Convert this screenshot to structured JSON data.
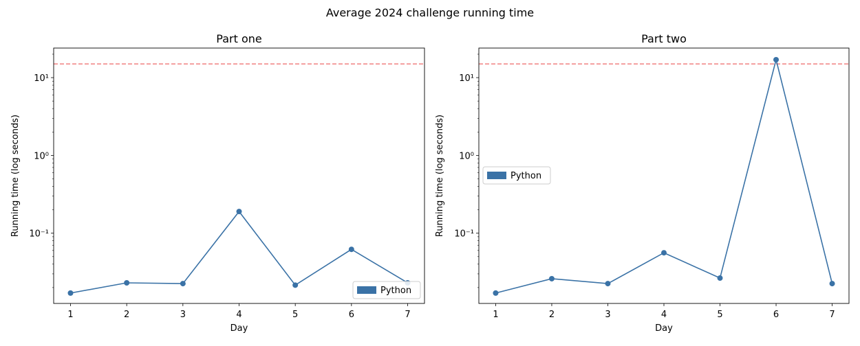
{
  "figure": {
    "suptitle": "Average 2024 challenge running time"
  },
  "chart_data": [
    {
      "type": "line",
      "title": "Part one",
      "xlabel": "Day",
      "ylabel": "Running time (log seconds)",
      "x": [
        1,
        2,
        3,
        4,
        5,
        6,
        7
      ],
      "series": [
        {
          "name": "Python",
          "values": [
            0.017,
            0.023,
            0.0225,
            0.19,
            0.0215,
            0.062,
            0.023
          ]
        }
      ],
      "threshold": 15,
      "yscale": "log",
      "ylim": [
        0.0125,
        24
      ],
      "xlim": [
        0.7,
        7.3
      ],
      "yticks": [
        0.1,
        1,
        10
      ],
      "ytick_labels": [
        "10⁻¹",
        "10⁰",
        "10¹"
      ],
      "legend": {
        "label": "Python",
        "placement": "lower-right"
      },
      "colors": {
        "series": "#3a72a6",
        "threshold": "#f08080"
      }
    },
    {
      "type": "line",
      "title": "Part two",
      "xlabel": "Day",
      "ylabel": "Running time (log seconds)",
      "x": [
        1,
        2,
        3,
        4,
        5,
        6,
        7
      ],
      "series": [
        {
          "name": "Python",
          "values": [
            0.017,
            0.026,
            0.0225,
            0.056,
            0.0265,
            17,
            0.0225
          ]
        }
      ],
      "threshold": 15,
      "yscale": "log",
      "ylim": [
        0.0125,
        24
      ],
      "xlim": [
        0.7,
        7.3
      ],
      "yticks": [
        0.1,
        1,
        10
      ],
      "ytick_labels": [
        "10⁻¹",
        "10⁰",
        "10¹"
      ],
      "legend": {
        "label": "Python",
        "placement": "center-left"
      },
      "colors": {
        "series": "#3a72a6",
        "threshold": "#f08080"
      }
    }
  ]
}
